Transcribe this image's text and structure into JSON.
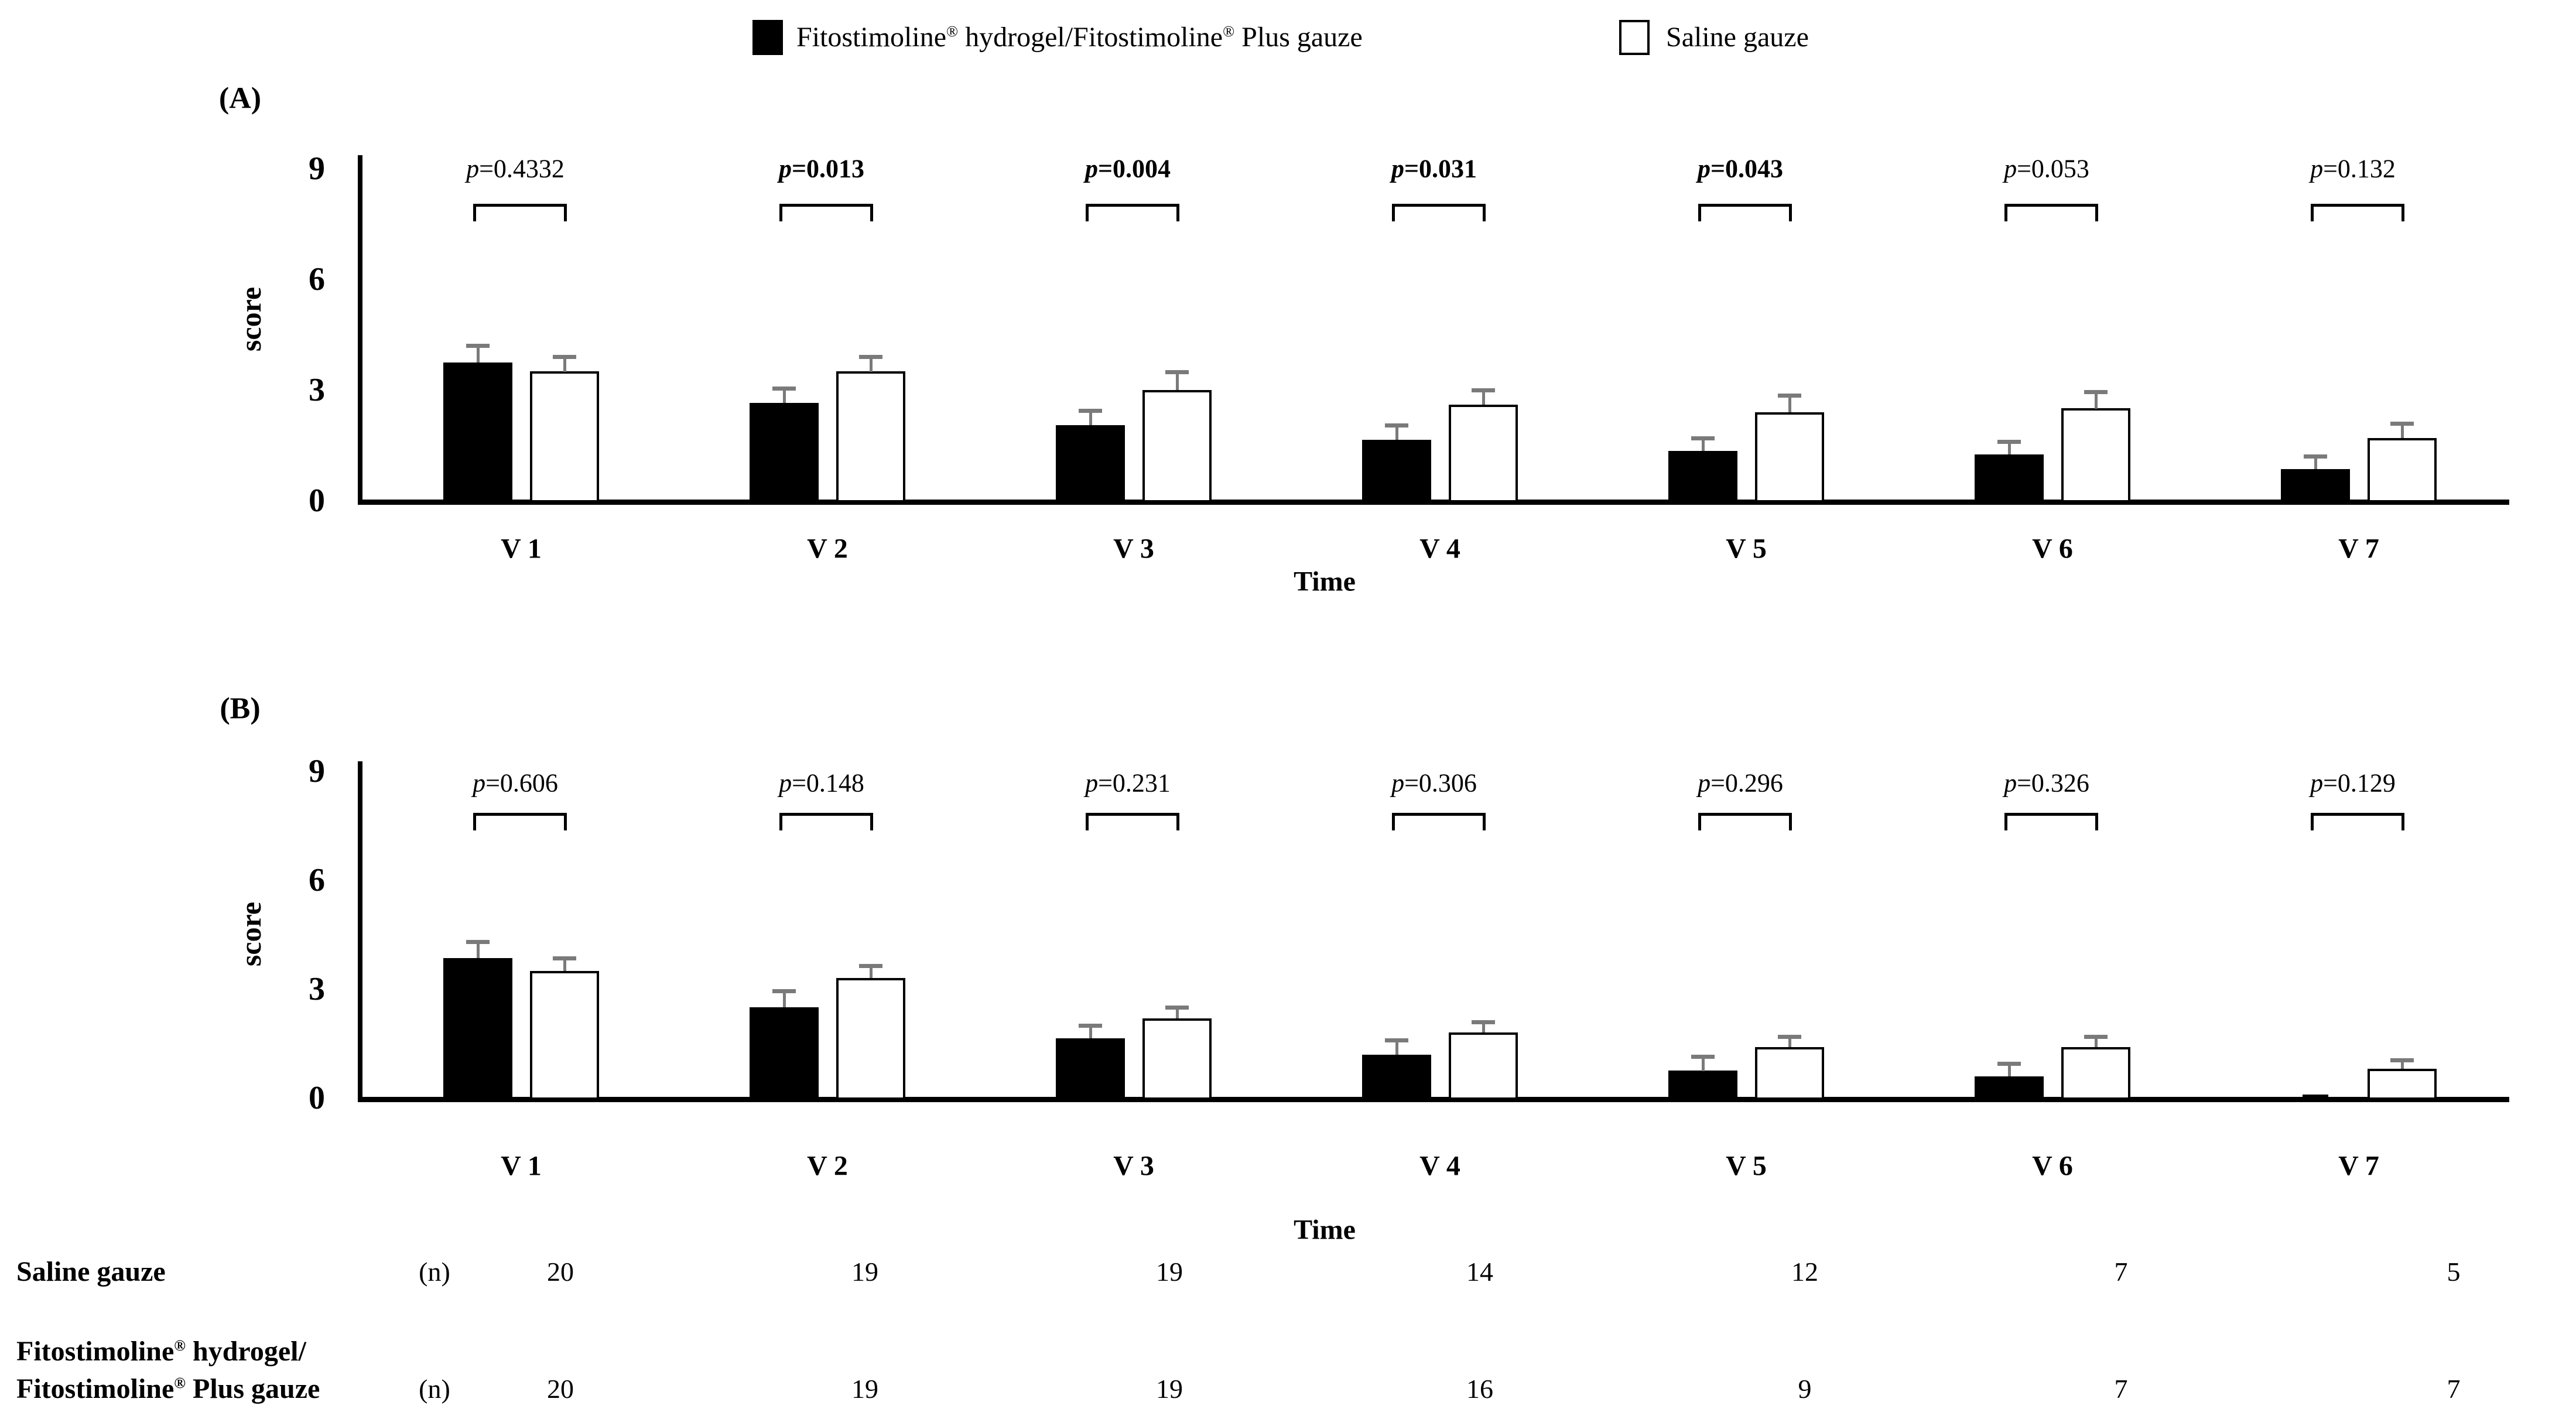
{
  "legend": {
    "series": [
      {
        "label": "Fitostimoline® hydrogel/Fitostimoline® Plus gauze",
        "fill": "#000000"
      },
      {
        "label": "Saline gauze",
        "fill": "#ffffff"
      }
    ]
  },
  "axis": {
    "ylabel": "score",
    "xlabel": "Time",
    "yticks": [
      0,
      3,
      6,
      9
    ],
    "ylim": [
      0,
      9
    ]
  },
  "chart_data": [
    {
      "panel": "(A)",
      "type": "bar",
      "categories": [
        "V 1",
        "V 2",
        "V 3",
        "V 4",
        "V 5",
        "V 6",
        "V 7"
      ],
      "xlabel": "Time",
      "ylabel": "score",
      "ylim": [
        0,
        9
      ],
      "yticks": [
        0,
        3,
        6,
        9
      ],
      "series": [
        {
          "name": "Fitostimoline® hydrogel/Fitostimoline® Plus gauze",
          "color": "#000000",
          "values": [
            3.75,
            2.65,
            2.05,
            1.65,
            1.35,
            1.25,
            0.85
          ],
          "se": [
            0.45,
            0.4,
            0.4,
            0.4,
            0.35,
            0.35,
            0.35
          ]
        },
        {
          "name": "Saline gauze",
          "color": "#ffffff",
          "values": [
            3.5,
            3.5,
            3.0,
            2.6,
            2.4,
            2.5,
            1.7
          ],
          "se": [
            0.4,
            0.4,
            0.5,
            0.4,
            0.45,
            0.45,
            0.4
          ]
        }
      ],
      "p_values": [
        {
          "label": "p=0.4332",
          "bold": false
        },
        {
          "label": "p=0.013",
          "bold": true
        },
        {
          "label": "p=0.004",
          "bold": true
        },
        {
          "label": "p=0.031",
          "bold": true
        },
        {
          "label": "p=0.043",
          "bold": true
        },
        {
          "label": "p=0.053",
          "bold": false
        },
        {
          "label": "p=0.132",
          "bold": false
        }
      ]
    },
    {
      "panel": "(B)",
      "type": "bar",
      "categories": [
        "V 1",
        "V 2",
        "V 3",
        "V 4",
        "V 5",
        "V 6",
        "V 7"
      ],
      "xlabel": "Time",
      "ylabel": "score",
      "ylim": [
        0,
        9
      ],
      "yticks": [
        0,
        3,
        6,
        9
      ],
      "series": [
        {
          "name": "Fitostimoline® hydrogel/Fitostimoline® Plus gauze",
          "color": "#000000",
          "values": [
            3.85,
            2.5,
            1.65,
            1.2,
            0.75,
            0.6,
            0.0
          ],
          "se": [
            0.45,
            0.45,
            0.35,
            0.4,
            0.4,
            0.35,
            0.0
          ]
        },
        {
          "name": "Saline gauze",
          "color": "#ffffff",
          "values": [
            3.5,
            3.3,
            2.2,
            1.8,
            1.4,
            1.4,
            0.8
          ],
          "se": [
            0.35,
            0.35,
            0.3,
            0.3,
            0.3,
            0.3,
            0.25
          ]
        }
      ],
      "p_values": [
        {
          "label": "p=0.606",
          "bold": false
        },
        {
          "label": "p=0.148",
          "bold": false
        },
        {
          "label": "p=0.231",
          "bold": false
        },
        {
          "label": "p=0.306",
          "bold": false
        },
        {
          "label": "p=0.296",
          "bold": false
        },
        {
          "label": "p=0.326",
          "bold": false
        },
        {
          "label": "p=0.129",
          "bold": false
        }
      ]
    }
  ],
  "table": {
    "rows": [
      {
        "label_lines": [
          "Saline gauze"
        ],
        "n_label": "(n)",
        "values": [
          "20",
          "19",
          "19",
          "14",
          "12",
          "7",
          "5"
        ]
      },
      {
        "label_lines": [
          "Fitostimoline® hydrogel/",
          "Fitostimoline® Plus gauze"
        ],
        "n_label": "(n)",
        "values": [
          "20",
          "19",
          "19",
          "16",
          "9",
          "7",
          "7"
        ]
      }
    ]
  }
}
